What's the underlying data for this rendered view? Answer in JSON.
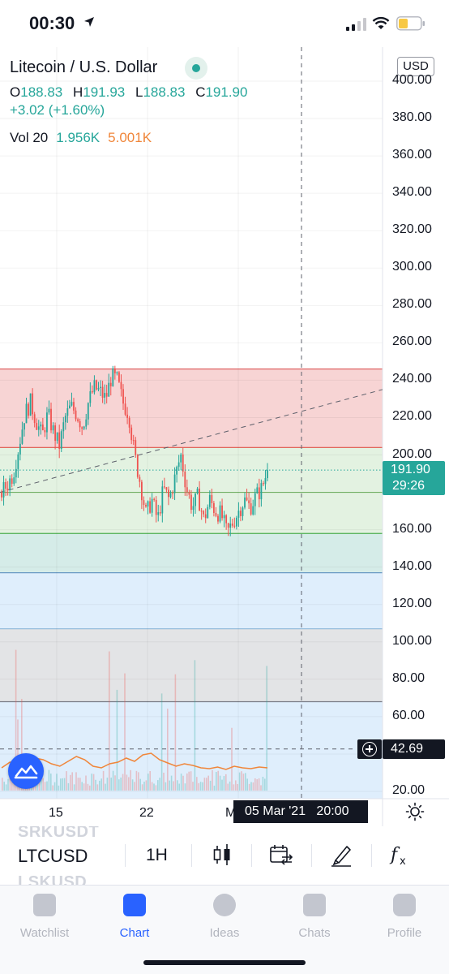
{
  "status_bar": {
    "time": "00:30"
  },
  "legend": {
    "symbol_title": "Litecoin / U.S. Dollar",
    "open_label": "O",
    "open": "188.83",
    "high_label": "H",
    "high": "191.93",
    "low_label": "L",
    "low": "188.83",
    "close_label": "C",
    "close": "191.90",
    "change": "+3.02 (+1.60%)",
    "volume_label": "Vol 20",
    "volume_value": "1.956K",
    "volume_ma": "5.001K"
  },
  "currency_button": "USD",
  "y_axis_labels": [
    "400.00",
    "380.00",
    "360.00",
    "340.00",
    "320.00",
    "300.00",
    "280.00",
    "260.00",
    "240.00",
    "220.00",
    "200.00",
    "180.00",
    "160.00",
    "140.00",
    "120.00",
    "100.00",
    "80.00",
    "60.00",
    "20.00"
  ],
  "x_axis_labels": [
    "15",
    "22",
    "M"
  ],
  "price_tag": {
    "price": "191.90",
    "countdown": "29:26"
  },
  "crosshair": {
    "price": "42.69",
    "time": "05 Mar '21   20:00"
  },
  "toolbar": {
    "symbol": "LTCUSD",
    "interval": "1H",
    "ghost_above": "SRKUSDT",
    "ghost_below": "LSKUSD"
  },
  "tabs": [
    {
      "label": "Watchlist",
      "active": false
    },
    {
      "label": "Chart",
      "active": true
    },
    {
      "label": "Ideas",
      "active": false
    },
    {
      "label": "Chats",
      "active": false
    },
    {
      "label": "Profile",
      "active": false
    }
  ],
  "colors": {
    "up": "#26a69a",
    "down": "#ef5350",
    "accent": "#2962ff",
    "zone_red": "#f7d4d4",
    "zone_green": "#e3f2e1",
    "zone_teal": "#d5ece8",
    "zone_blue": "#dfeefc",
    "zone_gray": "#e3e4e6"
  },
  "chart_data": {
    "type": "candlestick",
    "symbol": "LTCUSD",
    "interval": "1H",
    "ylim": [
      10,
      410
    ],
    "price_levels": [
      246,
      204,
      180,
      158,
      137,
      107,
      68
    ],
    "zones": [
      {
        "from": 204,
        "to": 246,
        "color": "red"
      },
      {
        "from": 158,
        "to": 204,
        "color": "green"
      },
      {
        "from": 137,
        "to": 158,
        "color": "teal"
      },
      {
        "from": 107,
        "to": 137,
        "color": "blue"
      },
      {
        "from": 68,
        "to": 107,
        "color": "gray"
      },
      {
        "from": 10,
        "to": 68,
        "color": "blue"
      }
    ],
    "close_path": [
      180,
      184,
      190,
      205,
      222,
      228,
      218,
      210,
      222,
      212,
      205,
      220,
      226,
      222,
      215,
      228,
      236,
      234,
      230,
      242,
      240,
      228,
      222,
      200,
      185,
      168,
      176,
      165,
      182,
      176,
      188,
      200,
      182,
      172,
      178,
      165,
      176,
      170,
      168,
      158,
      164,
      170,
      176,
      172,
      178,
      182,
      191.9
    ],
    "last_close": 191.9,
    "volume_ma_path": [
      28,
      35,
      32,
      45,
      40,
      38,
      33,
      30,
      36,
      42,
      38,
      30,
      28,
      33,
      35,
      40,
      36,
      44,
      46,
      38,
      34,
      30,
      33,
      31,
      28,
      27,
      29,
      26,
      30,
      28,
      27,
      29,
      28
    ]
  }
}
